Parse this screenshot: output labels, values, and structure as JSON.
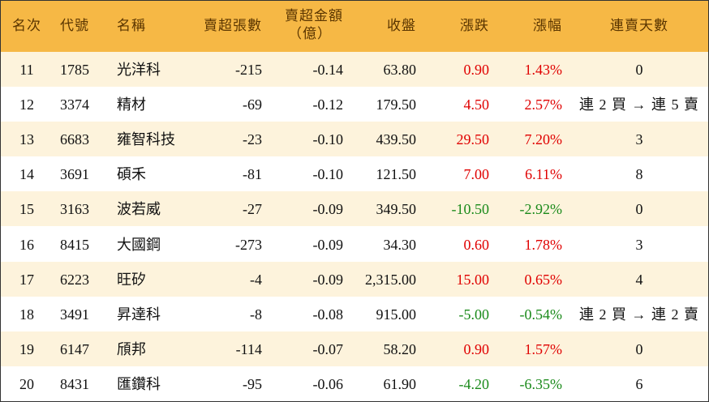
{
  "table": {
    "header": [
      "名次",
      "代號",
      "名稱",
      "賣超張數",
      [
        "賣超金額",
        "（億）"
      ],
      "收盤",
      "漲跌",
      "漲幅",
      "連賣天數"
    ],
    "rows": [
      [
        "11",
        "1785",
        "光洋科",
        "-215",
        "-0.14",
        "63.80",
        "0.90",
        "1.43%",
        "0"
      ],
      [
        "12",
        "3374",
        "精材",
        "-69",
        "-0.12",
        "179.50",
        "4.50",
        "2.57%",
        "連 2 買 → 連 5 賣"
      ],
      [
        "13",
        "6683",
        "雍智科技",
        "-23",
        "-0.10",
        "439.50",
        "29.50",
        "7.20%",
        "3"
      ],
      [
        "14",
        "3691",
        "碩禾",
        "-81",
        "-0.10",
        "121.50",
        "7.00",
        "6.11%",
        "8"
      ],
      [
        "15",
        "3163",
        "波若威",
        "-27",
        "-0.09",
        "349.50",
        "-10.50",
        "-2.92%",
        "0"
      ],
      [
        "16",
        "8415",
        "大國鋼",
        "-273",
        "-0.09",
        "34.30",
        "0.60",
        "1.78%",
        "3"
      ],
      [
        "17",
        "6223",
        "旺矽",
        "-4",
        "-0.09",
        "2,315.00",
        "15.00",
        "0.65%",
        "4"
      ],
      [
        "18",
        "3491",
        "昇達科",
        "-8",
        "-0.08",
        "915.00",
        "-5.00",
        "-0.54%",
        "連 2 買 → 連 2 賣"
      ],
      [
        "19",
        "6147",
        "頎邦",
        "-114",
        "-0.07",
        "58.20",
        "0.90",
        "1.57%",
        "0"
      ],
      [
        "20",
        "8431",
        "匯鑽科",
        "-95",
        "-0.06",
        "61.90",
        "-4.20",
        "-6.35%",
        "6"
      ]
    ]
  }
}
